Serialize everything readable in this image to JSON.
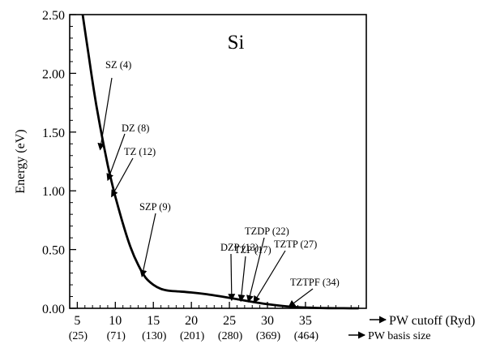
{
  "chart_data": {
    "type": "line",
    "panel_label": "Si",
    "xlabel": "PW cutoff (Ryd)",
    "x2label": "PW basis size",
    "ylabel": "Energy (eV)",
    "xlim": [
      4,
      43
    ],
    "ylim": [
      0,
      2.5
    ],
    "x_ticks": [
      5,
      10,
      15,
      20,
      25,
      30,
      35
    ],
    "x_tick_labels": [
      "5",
      "10",
      "15",
      "20",
      "25",
      "30",
      "35"
    ],
    "x2_tick_labels": [
      "(25)",
      "(71)",
      "(130)",
      "(201)",
      "(280)",
      "(369)",
      "(464)"
    ],
    "y_ticks": [
      0,
      0.5,
      1.0,
      1.5,
      2.0,
      2.5
    ],
    "y_tick_labels": [
      "0.00",
      "0.50",
      "1.00",
      "1.50",
      "2.00",
      "2.50"
    ],
    "grid": false,
    "series": [
      {
        "x": [
          5.7,
          6.5,
          7,
          7.5,
          8,
          8.5,
          9,
          9.5,
          10,
          11,
          12,
          13,
          14,
          15,
          16,
          17,
          18,
          20,
          22,
          24,
          26,
          28,
          30,
          32,
          34,
          36,
          38,
          40,
          42
        ],
        "y": [
          2.5,
          2.15,
          1.93,
          1.73,
          1.55,
          1.38,
          1.22,
          1.08,
          0.95,
          0.72,
          0.52,
          0.37,
          0.26,
          0.2,
          0.165,
          0.15,
          0.145,
          0.135,
          0.12,
          0.1,
          0.078,
          0.055,
          0.035,
          0.02,
          0.01,
          0.004,
          0.0015,
          0.0005,
          0.0
        ]
      }
    ],
    "annotations": [
      {
        "text": "SZ (4)",
        "x": 8.0,
        "y": 1.35
      },
      {
        "text": "DZ (8)",
        "x": 9.0,
        "y": 1.09
      },
      {
        "text": "TZ (12)",
        "x": 9.5,
        "y": 0.95
      },
      {
        "text": "SZP (9)",
        "x": 13.5,
        "y": 0.27
      },
      {
        "text": "DZP (13)",
        "x": 25.3,
        "y": 0.068
      },
      {
        "text": "TZP (17)",
        "x": 26.5,
        "y": 0.06
      },
      {
        "text": "TZDP (22)",
        "x": 27.5,
        "y": 0.055
      },
      {
        "text": "TZTP (27)",
        "x": 28.2,
        "y": 0.048
      },
      {
        "text": "TZTPF (34)",
        "x": 32.8,
        "y": 0.012
      }
    ]
  }
}
